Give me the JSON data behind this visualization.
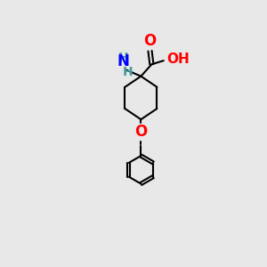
{
  "bg_color": "#e8e8e8",
  "bond_color": "#000000",
  "atom_colors": {
    "O": "#ff0000",
    "N": "#0000ff",
    "C": "#000000",
    "H": "#4a9a9a"
  },
  "figsize": [
    3.0,
    3.0
  ],
  "dpi": 100
}
